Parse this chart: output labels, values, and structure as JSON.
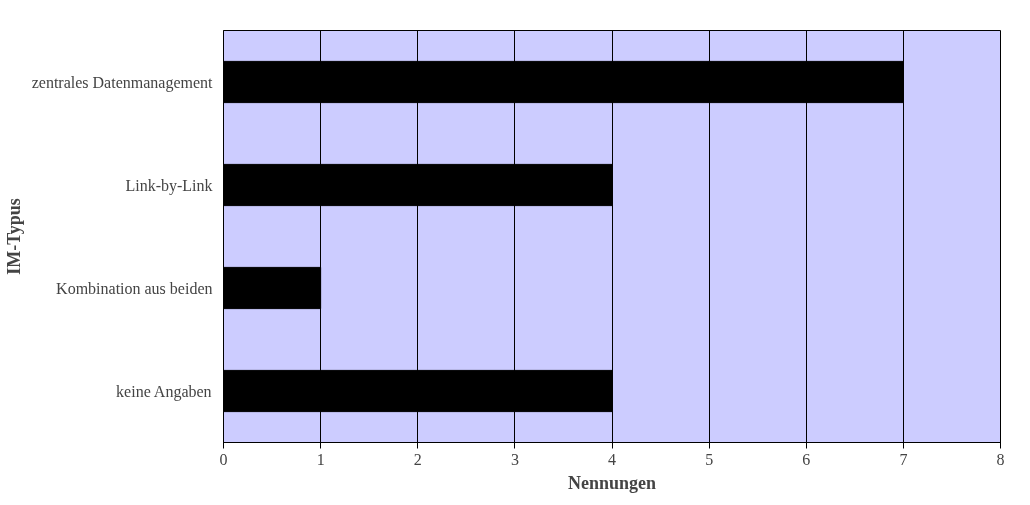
{
  "chart_data": {
    "type": "bar",
    "orientation": "horizontal",
    "categories": [
      "zentrales Datenmanagement",
      "Link-by-Link",
      "Kombination aus beiden",
      "keine Angaben"
    ],
    "values": [
      7,
      4,
      1,
      4
    ],
    "color": "#000000",
    "xlim": [
      0,
      8
    ],
    "xticks": [
      0,
      1,
      2,
      3,
      4,
      5,
      6,
      7,
      8
    ],
    "xlabel": "Nennungen",
    "ylabel": "IM-Typus",
    "grid": "x"
  }
}
